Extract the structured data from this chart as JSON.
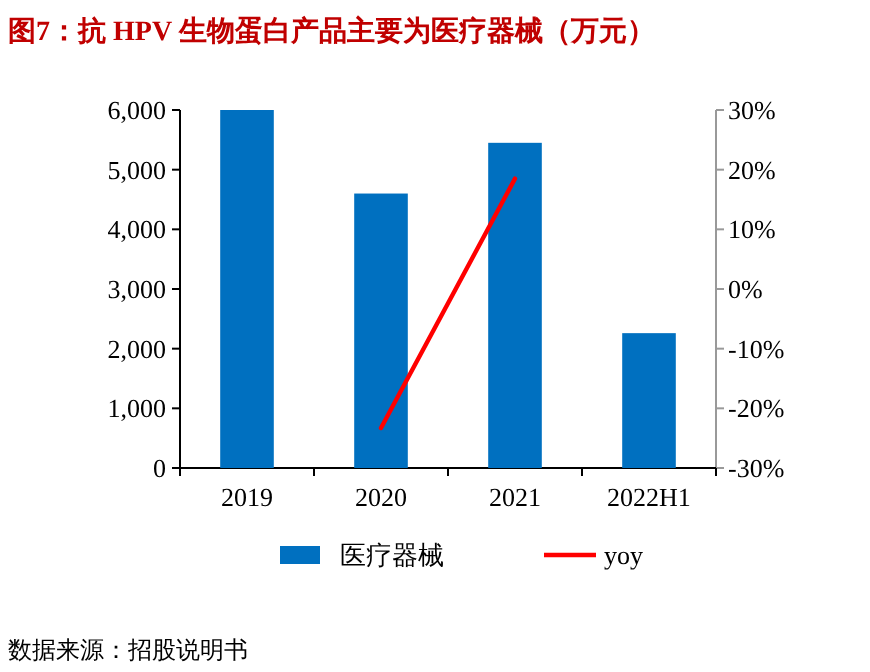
{
  "chart_data": {
    "type": "bar",
    "title": "图7：抗 HPV 生物蛋白产品主要为医疗器械（万元）",
    "categories": [
      "2019",
      "2020",
      "2021",
      "2022H1"
    ],
    "series": [
      {
        "name": "医疗器械",
        "color": "#0070c0",
        "values": [
          6000,
          4600,
          5450,
          2260
        ]
      },
      {
        "name": "yoy",
        "type": "line",
        "axis": "y2",
        "color": "#ff0000",
        "values": [
          null,
          -23.3,
          18.5,
          null
        ]
      }
    ],
    "ylim": [
      0,
      6000
    ],
    "yticks": [
      0,
      {
        "value": 1000,
        "label": "1,000"
      },
      {
        "value": 2000,
        "label": "2,000"
      },
      {
        "value": 3000,
        "label": "3,000"
      },
      {
        "value": 4000,
        "label": "4,000"
      },
      {
        "value": 5000,
        "label": "5,000"
      },
      {
        "value": 6000,
        "label": "6,000"
      }
    ],
    "y2lim": [
      -30,
      30
    ],
    "y2ticks": [
      {
        "value": -30,
        "label": "-30%"
      },
      {
        "value": -20,
        "label": "-20%"
      },
      {
        "value": -10,
        "label": "-10%"
      },
      {
        "value": 0,
        "label": "0%"
      },
      {
        "value": 10,
        "label": "10%"
      },
      {
        "value": 20,
        "label": "20%"
      },
      {
        "value": 30,
        "label": "30%"
      }
    ],
    "legend": "bottom",
    "annotations": [
      "数据来源：招股说明书"
    ]
  }
}
